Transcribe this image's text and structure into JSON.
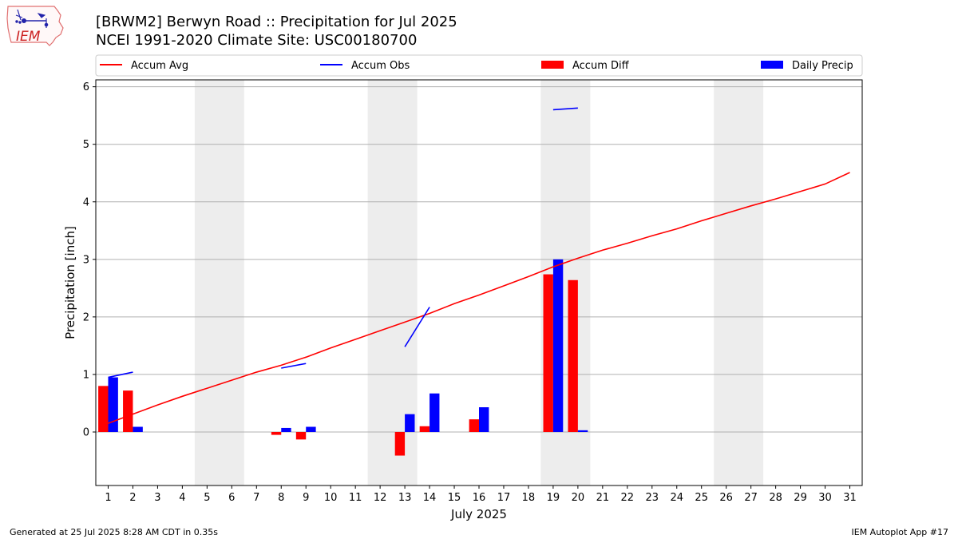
{
  "header": {
    "title_line1": "[BRWM2] Berwyn Road :: Precipitation for Jul 2025",
    "title_line2": "NCEI 1991-2020 Climate Site: USC00180700",
    "logo_text": "IEM"
  },
  "footer": {
    "generated": "Generated at 25 Jul 2025 8:28 AM CDT in 0.35s",
    "app": "IEM Autoplot App #17"
  },
  "colors": {
    "avg": "#ff0000",
    "obs": "#0000ff",
    "diff": "#ff0000",
    "daily": "#0000ff",
    "weekend": "#ededed",
    "grid": "#b0b0b0"
  },
  "chart_data": {
    "type": "bar",
    "xlabel": "July 2025",
    "ylabel": "Precipitation [inch]",
    "xlim": [
      0.5,
      31.5
    ],
    "ylim": [
      -0.93,
      6.12
    ],
    "yticks": [
      0,
      1,
      2,
      3,
      4,
      5,
      6
    ],
    "days": [
      1,
      2,
      3,
      4,
      5,
      6,
      7,
      8,
      9,
      10,
      11,
      12,
      13,
      14,
      15,
      16,
      17,
      18,
      19,
      20,
      21,
      22,
      23,
      24,
      25,
      26,
      27,
      28,
      29,
      30,
      31
    ],
    "weekend_spans": [
      [
        5,
        6
      ],
      [
        12,
        13
      ],
      [
        19,
        20
      ],
      [
        26,
        27
      ]
    ],
    "legend": [
      "Accum Avg",
      "Accum Obs",
      "Accum Diff",
      "Daily Precip"
    ],
    "grid": true,
    "series": [
      {
        "name": "Accum Avg",
        "kind": "line",
        "x": [
          1,
          2,
          3,
          4,
          5,
          6,
          7,
          8,
          9,
          10,
          11,
          12,
          13,
          14,
          15,
          16,
          17,
          18,
          19,
          20,
          21,
          22,
          23,
          24,
          25,
          26,
          27,
          28,
          29,
          30,
          31
        ],
        "values": [
          0.15,
          0.31,
          0.47,
          0.62,
          0.76,
          0.9,
          1.04,
          1.16,
          1.3,
          1.46,
          1.61,
          1.76,
          1.91,
          2.06,
          2.23,
          2.38,
          2.54,
          2.7,
          2.87,
          3.02,
          3.16,
          3.28,
          3.41,
          3.53,
          3.67,
          3.8,
          3.93,
          4.05,
          4.18,
          4.31,
          4.51
        ]
      },
      {
        "name": "Accum Obs",
        "kind": "line",
        "segments": [
          [
            [
              1,
              0.95
            ],
            [
              2,
              1.04
            ]
          ],
          [
            [
              8,
              1.11
            ],
            [
              9,
              1.19
            ]
          ],
          [
            [
              13,
              1.48
            ],
            [
              14,
              2.17
            ]
          ],
          [
            [
              19,
              5.6
            ],
            [
              20,
              5.63
            ]
          ]
        ]
      },
      {
        "name": "Accum Diff",
        "kind": "bar",
        "x": [
          1,
          2,
          8,
          9,
          13,
          14,
          16,
          19,
          20
        ],
        "values": [
          0.8,
          0.72,
          -0.05,
          -0.13,
          -0.41,
          0.1,
          0.22,
          2.74,
          2.64
        ]
      },
      {
        "name": "Daily Precip",
        "kind": "bar",
        "x": [
          1,
          2,
          8,
          9,
          13,
          14,
          16,
          19,
          20
        ],
        "values": [
          0.95,
          0.09,
          0.07,
          0.09,
          0.31,
          0.67,
          0.43,
          3.0,
          0.03
        ]
      }
    ]
  }
}
